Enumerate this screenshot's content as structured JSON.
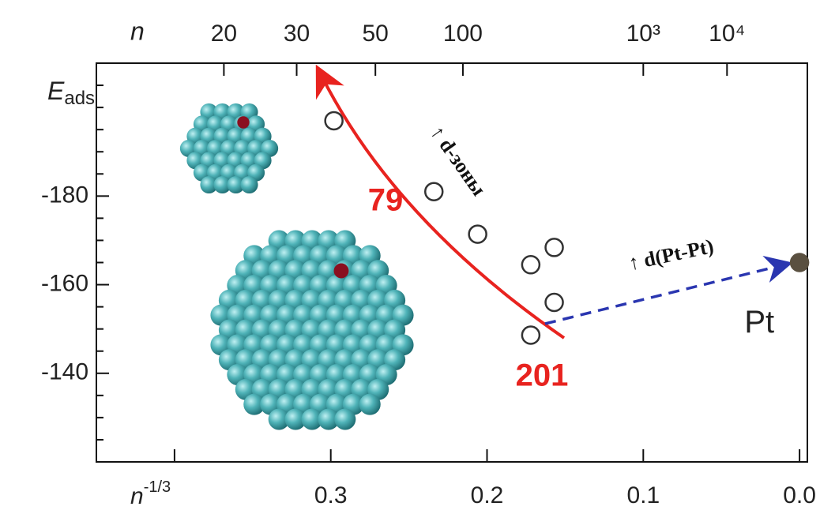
{
  "chart_data": {
    "type": "scatter",
    "x_label": {
      "base": "n",
      "sup": "-1/3"
    },
    "y_label": {
      "base": "E",
      "sub": "ads"
    },
    "top_axis_label": "n",
    "xlim": [
      0.45,
      -0.005
    ],
    "ylim": [
      -210,
      -120
    ],
    "xticks": [
      {
        "value": 0.3,
        "label": "0.3"
      },
      {
        "value": 0.2,
        "label": "0.2"
      },
      {
        "value": 0.1,
        "label": "0.1"
      },
      {
        "value": 0,
        "label": "0.0"
      }
    ],
    "xticks_minor": [
      0.4
    ],
    "yticks": [
      -180,
      -160,
      -140
    ],
    "yticks_minor": [
      -205,
      -200,
      -195,
      -190,
      -185,
      -175,
      -170,
      -165,
      -155,
      -150,
      -145,
      -135,
      -130,
      -125
    ],
    "top_ticks": [
      20,
      30,
      50,
      100,
      {
        "value": 1000,
        "label": "10³"
      },
      {
        "value": 10000,
        "label": "10⁴"
      }
    ],
    "series": [
      {
        "color": "#333333",
        "filled": false,
        "x": [
          0.298,
          0.234,
          0.206,
          0.172,
          0.157,
          0.157,
          0.172
        ],
        "values": [
          -197,
          -181,
          -171.4,
          -164.5,
          -168.4,
          -156,
          -148.6
        ]
      },
      {
        "name": "Pt",
        "color": "#5a5040",
        "filled": true,
        "x": [
          0
        ],
        "values": [
          -165
        ]
      }
    ],
    "annotations": [
      "79",
      "201",
      "↑ d-зоны",
      "↑ d(Pt-Pt)"
    ]
  }
}
